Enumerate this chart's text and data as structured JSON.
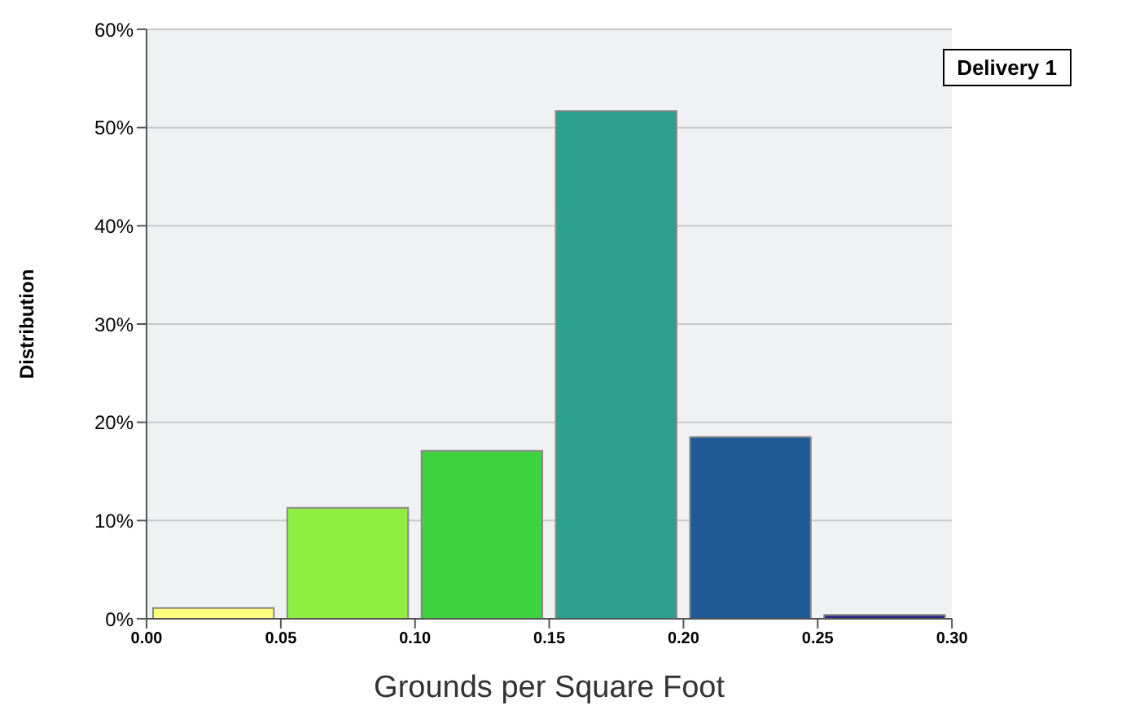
{
  "chart_data": {
    "type": "histogram",
    "xlabel": "Grounds per Square Foot",
    "ylabel": "Distribution",
    "bins": [
      0,
      0.05,
      0.1,
      0.15,
      0.2,
      0.25,
      0.3
    ],
    "series": [
      {
        "name": "Delivery 1",
        "values": [
          1.1,
          11.3,
          17.1,
          51.7,
          18.5,
          0.4
        ],
        "colors": [
          "#ffff80",
          "#8eef40",
          "#3fd23f",
          "#2ca08e",
          "#1f5a96",
          "#2b2a82"
        ]
      }
    ],
    "xlim": [
      0,
      0.3
    ],
    "xticks": [
      {
        "value": 0,
        "label": "0.00"
      },
      {
        "value": 0.05,
        "label": "0.05"
      },
      {
        "value": 0.1,
        "label": "0.10"
      },
      {
        "value": 0.15,
        "label": "0.15"
      },
      {
        "value": 0.2,
        "label": "0.20"
      },
      {
        "value": 0.25,
        "label": "0.25"
      },
      {
        "value": 0.3,
        "label": "0.30"
      }
    ],
    "ylim": [
      0,
      60
    ],
    "yticks": [
      {
        "value": 0,
        "label": "0%"
      },
      {
        "value": 10,
        "label": "10%"
      },
      {
        "value": 20,
        "label": "20%"
      },
      {
        "value": 30,
        "label": "30%"
      },
      {
        "value": 40,
        "label": "40%"
      },
      {
        "value": 50,
        "label": "50%"
      },
      {
        "value": 60,
        "label": "60%"
      }
    ],
    "grid": "y",
    "legend": "top right"
  }
}
